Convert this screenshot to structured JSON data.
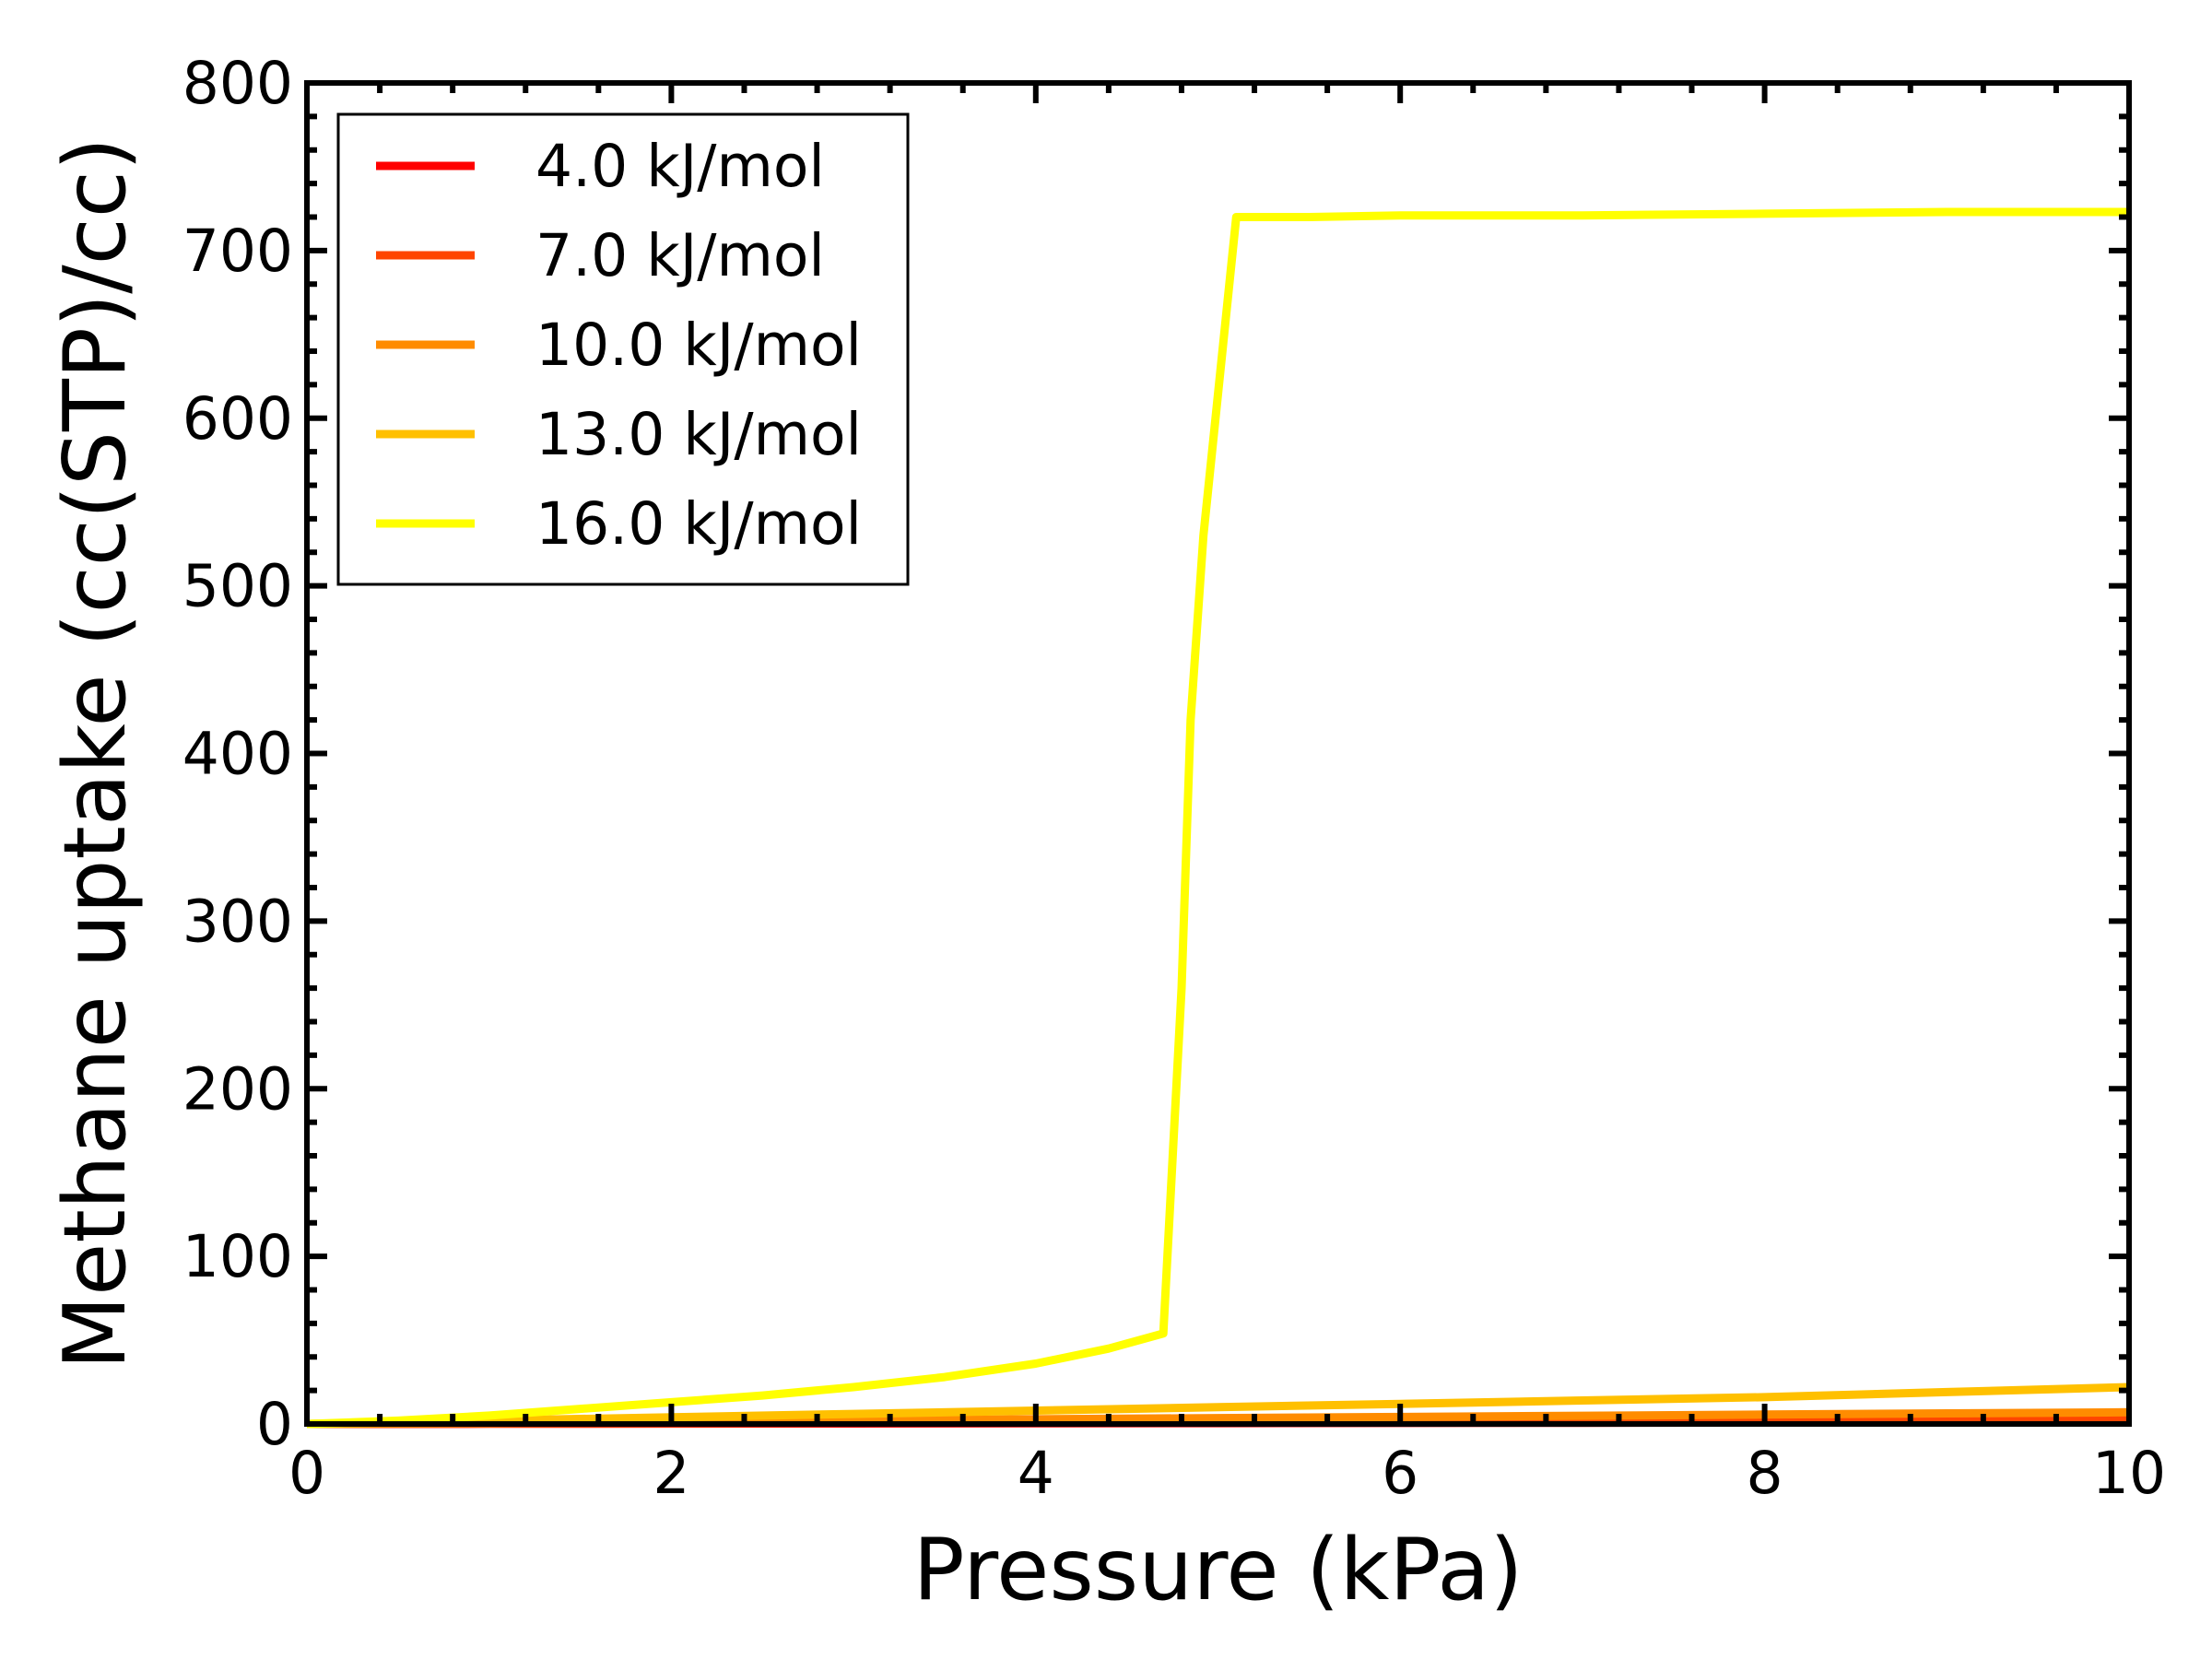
{
  "chart_data": {
    "type": "line",
    "title": "",
    "xlabel": "Pressure (kPa)",
    "ylabel": "Methane uptake (cc(STP)/cc)",
    "xlim": [
      0,
      10
    ],
    "ylim": [
      0,
      800
    ],
    "xticks": [
      0,
      2,
      4,
      6,
      8,
      10
    ],
    "yticks": [
      0,
      100,
      200,
      300,
      400,
      500,
      600,
      700,
      800
    ],
    "xtick_labels": [
      "0",
      "2",
      "4",
      "6",
      "8",
      "10"
    ],
    "ytick_labels": [
      "0",
      "100",
      "200",
      "300",
      "400",
      "500",
      "600",
      "700",
      "800"
    ],
    "grid": false,
    "legend_position": "top-left",
    "series": [
      {
        "name": "4.0 kJ/mol",
        "color": "#ff0000",
        "x": [
          0,
          1,
          2,
          3,
          4,
          5,
          6,
          7,
          8,
          9,
          10
        ],
        "y": [
          0,
          0.1,
          0.2,
          0.3,
          0.4,
          0.5,
          0.6,
          0.7,
          0.8,
          0.9,
          1.0
        ]
      },
      {
        "name": "7.0 kJ/mol",
        "color": "#ff4500",
        "x": [
          0,
          1,
          2,
          3,
          4,
          5,
          6,
          7,
          8,
          9,
          10
        ],
        "y": [
          0,
          0.3,
          0.5,
          0.8,
          1.0,
          1.3,
          1.5,
          1.8,
          2.0,
          2.3,
          2.5
        ]
      },
      {
        "name": "10.0 kJ/mol",
        "color": "#ff8c00",
        "x": [
          0,
          1,
          2,
          3,
          4,
          5,
          6,
          7,
          8,
          9,
          10
        ],
        "y": [
          0,
          0.7,
          1.4,
          2.1,
          2.8,
          3.5,
          4.2,
          4.9,
          5.6,
          6.3,
          7.0
        ]
      },
      {
        "name": "13.0 kJ/mol",
        "color": "#ffc000",
        "x": [
          0,
          1,
          2,
          3,
          4,
          5,
          6,
          7,
          8,
          9,
          10
        ],
        "y": [
          0,
          2,
          4,
          6,
          8,
          10,
          12,
          14,
          16,
          19,
          22
        ]
      },
      {
        "name": "16.0 kJ/mol",
        "color": "#ffff00",
        "x": [
          0,
          0.5,
          1,
          1.5,
          2,
          2.5,
          3,
          3.5,
          4,
          4.4,
          4.7,
          4.8,
          4.85,
          4.92,
          5.1,
          5.5,
          6,
          7,
          8,
          9,
          10
        ],
        "y": [
          0,
          2,
          5,
          9,
          13,
          17,
          22,
          28,
          36,
          45,
          54,
          260,
          420,
          530,
          720,
          720,
          721,
          721,
          722,
          723,
          723
        ]
      }
    ]
  }
}
